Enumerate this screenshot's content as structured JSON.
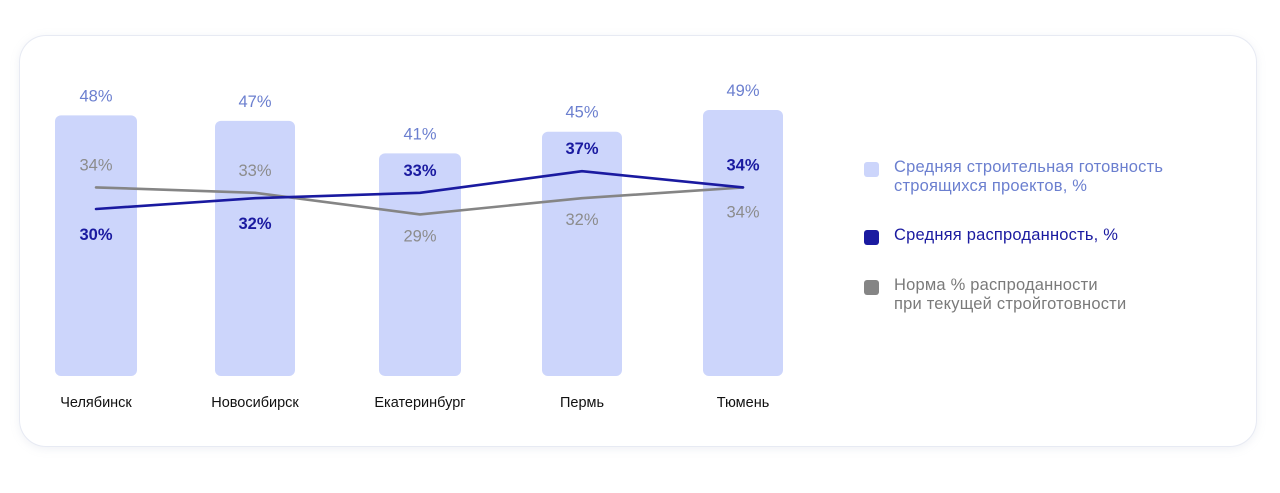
{
  "colors": {
    "bar": "#ccd5fb",
    "bar_label": "#6b7fcf",
    "sales": "#1a1aa0",
    "norm": "#858585",
    "norm_label": "#8c8c8c",
    "category_text": "#111111"
  },
  "chart_data": {
    "type": "bar",
    "categories": [
      "Челябинск",
      "Новосибирск",
      "Екатеринбург",
      "Пермь",
      "Тюмень"
    ],
    "series": [
      {
        "name": "Средняя строительная готовность строящихся проектов, %",
        "type": "bar",
        "values": [
          48,
          47,
          41,
          45,
          49
        ],
        "labels": [
          "48%",
          "47%",
          "41%",
          "45%",
          "49%"
        ]
      },
      {
        "name": "Средняя распроданность, %",
        "type": "line",
        "values": [
          30,
          32,
          33,
          37,
          34
        ],
        "labels": [
          "30%",
          "32%",
          "33%",
          "37%",
          "34%"
        ]
      },
      {
        "name": "Норма % распроданности при текущей стройготовности",
        "type": "line",
        "values": [
          34,
          33,
          29,
          32,
          34
        ],
        "labels": [
          "34%",
          "33%",
          "29%",
          "32%",
          "34%"
        ]
      }
    ],
    "legend_position": "right",
    "grid": false
  },
  "legend": {
    "items": [
      {
        "lines": [
          "Средняя строительная готовность",
          "строящихся проектов, %"
        ]
      },
      {
        "lines": [
          "Средняя распроданность, %"
        ]
      },
      {
        "lines": [
          "Норма % распроданности",
          "при текущей стройготовности"
        ]
      }
    ]
  }
}
